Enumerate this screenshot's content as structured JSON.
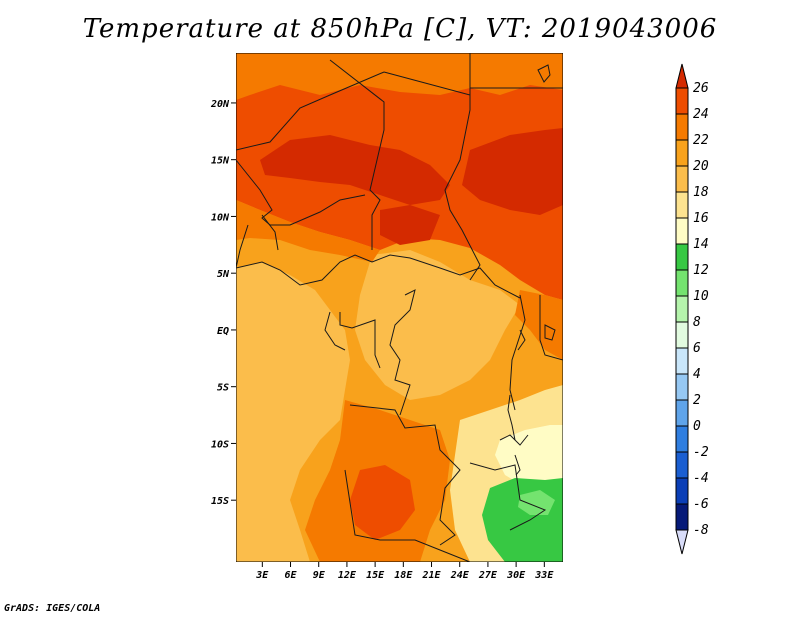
{
  "title": "Temperature at 850hPa [C], VT: 2019043006",
  "credit": "GrADS: IGES/COLA",
  "map": {
    "region": "Central Africa",
    "lon_range": [
      0,
      34
    ],
    "lat_range": [
      -20,
      24
    ],
    "x_ticks": [
      "3E",
      "6E",
      "9E",
      "12E",
      "15E",
      "18E",
      "21E",
      "24E",
      "27E",
      "30E",
      "33E"
    ],
    "y_ticks": [
      "20N",
      "15N",
      "10N",
      "5N",
      "EQ",
      "5S",
      "10S",
      "15S"
    ]
  },
  "colorbar": {
    "levels": [
      "26",
      "24",
      "22",
      "20",
      "18",
      "16",
      "14",
      "12",
      "10",
      "8",
      "6",
      "4",
      "2",
      "0",
      "-2",
      "-4",
      "-6",
      "-8"
    ],
    "colors": [
      "#d42a00",
      "#ee4d00",
      "#f57a00",
      "#f8a21c",
      "#fbbd4b",
      "#fde390",
      "#fffcc5",
      "#37c843",
      "#74e36f",
      "#b5f4ac",
      "#e2fbe0",
      "#c9e6fa",
      "#96c8f3",
      "#5fa4ea",
      "#2f7ee0",
      "#1a5ed1",
      "#0b3fb7",
      "#061a78",
      "#d8dcf8"
    ]
  }
}
